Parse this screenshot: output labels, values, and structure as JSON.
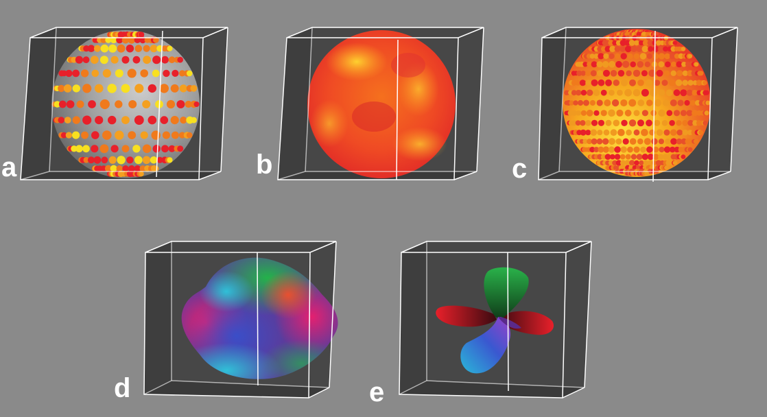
{
  "panels": [
    {
      "label": "a",
      "content": "sphere-with-dots-on-transparent-surface"
    },
    {
      "label": "b",
      "content": "solid-textured-sphere"
    },
    {
      "label": "c",
      "content": "sphere-of-dense-dots"
    },
    {
      "label": "d",
      "content": "color-coded-smooth-blob"
    },
    {
      "label": "e",
      "content": "color-coded-lobed-glyph"
    }
  ],
  "colors": {
    "background": "#8a8a8a",
    "box_face": "#444444",
    "box_edge": "#ffffff",
    "red": "#e8202a",
    "orange": "#f07a1c",
    "yellow": "#f8e020",
    "green": "#2ab24a",
    "blue": "#2a58c8",
    "cyan": "#2ab8d8",
    "magenta": "#e0207a"
  }
}
